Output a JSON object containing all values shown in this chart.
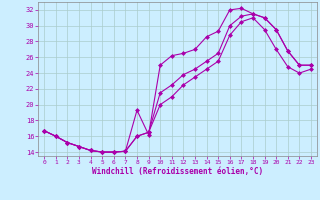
{
  "xlabel": "Windchill (Refroidissement éolien,°C)",
  "xlim": [
    -0.5,
    23.5
  ],
  "ylim": [
    13.5,
    33
  ],
  "xticks": [
    0,
    1,
    2,
    3,
    4,
    5,
    6,
    7,
    8,
    9,
    10,
    11,
    12,
    13,
    14,
    15,
    16,
    17,
    18,
    19,
    20,
    21,
    22,
    23
  ],
  "yticks": [
    14,
    16,
    18,
    20,
    22,
    24,
    26,
    28,
    30,
    32
  ],
  "bg_color": "#cceeff",
  "line_color": "#aa00aa",
  "grid_color": "#aacccc",
  "line1_x": [
    0,
    1,
    2,
    3,
    4,
    5,
    6,
    7,
    8,
    9,
    10,
    11,
    12,
    13,
    14,
    15,
    16,
    17,
    18,
    19,
    20,
    21,
    22,
    23
  ],
  "line1_y": [
    16.7,
    16.0,
    15.2,
    14.7,
    14.2,
    14.0,
    14.0,
    14.1,
    19.3,
    16.2,
    25.0,
    26.2,
    26.5,
    27.0,
    28.6,
    29.3,
    32.0,
    32.2,
    31.5,
    31.0,
    29.5,
    26.8,
    25.0,
    25.0
  ],
  "line2_x": [
    0,
    1,
    2,
    3,
    4,
    5,
    6,
    7,
    8,
    9,
    10,
    11,
    12,
    13,
    14,
    15,
    16,
    17,
    18,
    19,
    20,
    21,
    22,
    23
  ],
  "line2_y": [
    16.7,
    16.0,
    15.2,
    14.7,
    14.2,
    14.0,
    14.0,
    14.1,
    16.0,
    16.5,
    21.5,
    22.5,
    23.8,
    24.5,
    25.5,
    26.5,
    30.0,
    31.2,
    31.5,
    31.0,
    29.5,
    26.8,
    25.0,
    25.0
  ],
  "line3_x": [
    0,
    1,
    2,
    3,
    4,
    5,
    6,
    7,
    8,
    9,
    10,
    11,
    12,
    13,
    14,
    15,
    16,
    17,
    18,
    19,
    20,
    21,
    22,
    23
  ],
  "line3_y": [
    16.7,
    16.0,
    15.2,
    14.7,
    14.2,
    14.0,
    14.0,
    14.1,
    16.0,
    16.5,
    20.0,
    21.0,
    22.5,
    23.5,
    24.5,
    25.5,
    28.8,
    30.5,
    31.0,
    29.5,
    27.0,
    24.8,
    24.0,
    24.5
  ]
}
